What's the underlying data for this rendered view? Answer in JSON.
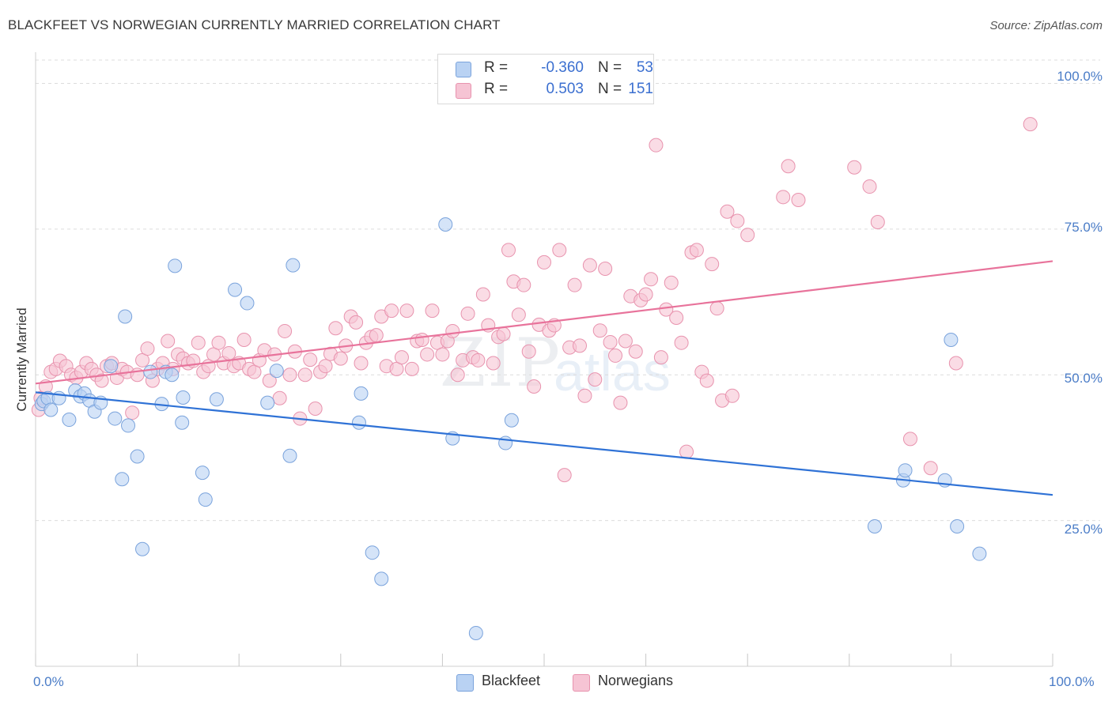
{
  "title": "BLACKFEET VS NORWEGIAN CURRENTLY MARRIED CORRELATION CHART",
  "source": "Source: ZipAtlas.com",
  "watermark": "ZIP",
  "watermark2": "atlas",
  "legend": {
    "r_label": "R =",
    "n_label": "N =",
    "rows": [
      {
        "name": "Blackfeet",
        "r": "-0.360",
        "n": "53"
      },
      {
        "name": "Norwegians",
        "r": "0.503",
        "n": "151"
      }
    ]
  },
  "colors": {
    "blackfeet_fill": "#b9d2f3",
    "blackfeet_stroke": "#7aa3dc",
    "blackfeet_line": "#2f72d6",
    "norwegians_fill": "#f6c4d4",
    "norwegians_stroke": "#e893ae",
    "norwegians_line": "#e8739b",
    "tick_text": "#4a7cc7"
  },
  "chart_data": {
    "type": "scatter",
    "title": "BLACKFEET VS NORWEGIAN CURRENTLY MARRIED CORRELATION CHART",
    "xlabel": "",
    "ylabel": "Currently Married",
    "xlim": [
      0,
      100
    ],
    "ylim": [
      0,
      104
    ],
    "x_tick_labels": [
      "0.0%",
      "100.0%"
    ],
    "y_ticks": [
      25,
      50,
      75,
      100
    ],
    "y_tick_labels": [
      "25.0%",
      "50.0%",
      "75.0%",
      "100.0%"
    ],
    "grid": true,
    "series": [
      {
        "name": "Blackfeet",
        "trend": {
          "x0": 0,
          "y0": 47.0,
          "x1": 100,
          "y1": 29.4
        },
        "points": [
          [
            0.6,
            45
          ],
          [
            0.8,
            45.5
          ],
          [
            1.2,
            46
          ],
          [
            1.5,
            44
          ],
          [
            2.3,
            46
          ],
          [
            3.3,
            42.3
          ],
          [
            3.9,
            47.3
          ],
          [
            4.4,
            46.3
          ],
          [
            4.8,
            46.8
          ],
          [
            5.3,
            45.6
          ],
          [
            5.8,
            43.7
          ],
          [
            6.4,
            45.2
          ],
          [
            7.4,
            51.5
          ],
          [
            7.8,
            42.5
          ],
          [
            8.5,
            32.1
          ],
          [
            8.8,
            60
          ],
          [
            9.1,
            41.3
          ],
          [
            10,
            36
          ],
          [
            10.5,
            20.1
          ],
          [
            11.3,
            50.5
          ],
          [
            12.4,
            45
          ],
          [
            12.8,
            50.5
          ],
          [
            13.4,
            50
          ],
          [
            13.7,
            68.7
          ],
          [
            14.4,
            41.8
          ],
          [
            14.5,
            46.1
          ],
          [
            16.4,
            33.2
          ],
          [
            16.7,
            28.6
          ],
          [
            17.8,
            45.8
          ],
          [
            19.6,
            64.6
          ],
          [
            20.8,
            62.3
          ],
          [
            22.8,
            45.2
          ],
          [
            23.7,
            50.7
          ],
          [
            25,
            36.1
          ],
          [
            25.3,
            68.8
          ],
          [
            31.8,
            41.8
          ],
          [
            32,
            46.8
          ],
          [
            33.1,
            19.5
          ],
          [
            34,
            15
          ],
          [
            40.3,
            75.8
          ],
          [
            41,
            39.1
          ],
          [
            43.3,
            5.7
          ],
          [
            46.2,
            38.3
          ],
          [
            46.8,
            42.2
          ],
          [
            82.5,
            24
          ],
          [
            85.3,
            31.9
          ],
          [
            85.5,
            33.6
          ],
          [
            89.4,
            31.9
          ],
          [
            90,
            56
          ],
          [
            90.6,
            24
          ],
          [
            92.8,
            19.3
          ]
        ]
      },
      {
        "name": "Norwegians",
        "trend": {
          "x0": 0,
          "y0": 48.5,
          "x1": 100,
          "y1": 69.5
        },
        "points": [
          [
            0.3,
            44
          ],
          [
            0.5,
            46
          ],
          [
            1,
            48
          ],
          [
            1.5,
            50.5
          ],
          [
            2,
            51
          ],
          [
            2.4,
            52.4
          ],
          [
            3,
            51.5
          ],
          [
            3.5,
            50
          ],
          [
            4,
            49.5
          ],
          [
            4.5,
            50.5
          ],
          [
            5,
            52
          ],
          [
            5.5,
            51
          ],
          [
            6,
            50
          ],
          [
            6.5,
            49
          ],
          [
            7,
            51.5
          ],
          [
            7.5,
            52
          ],
          [
            8,
            49.5
          ],
          [
            8.5,
            51
          ],
          [
            9,
            50.5
          ],
          [
            9.5,
            43.5
          ],
          [
            10,
            50
          ],
          [
            10.5,
            52.5
          ],
          [
            11,
            54.5
          ],
          [
            11.5,
            49
          ],
          [
            12,
            51
          ],
          [
            12.5,
            52
          ],
          [
            13,
            55.8
          ],
          [
            13.5,
            51
          ],
          [
            14,
            53.5
          ],
          [
            14.5,
            52.8
          ],
          [
            15,
            52
          ],
          [
            15.5,
            52.4
          ],
          [
            16,
            55.5
          ],
          [
            16.5,
            50.5
          ],
          [
            17,
            51.5
          ],
          [
            17.5,
            53.5
          ],
          [
            18,
            55.5
          ],
          [
            18.5,
            52
          ],
          [
            19,
            53.7
          ],
          [
            19.5,
            51.5
          ],
          [
            20,
            52
          ],
          [
            20.5,
            56
          ],
          [
            21,
            51
          ],
          [
            21.5,
            50.5
          ],
          [
            22,
            52.5
          ],
          [
            22.5,
            54.2
          ],
          [
            23,
            49
          ],
          [
            23.5,
            53.5
          ],
          [
            24,
            46
          ],
          [
            24.5,
            57.5
          ],
          [
            25,
            50
          ],
          [
            25.5,
            54
          ],
          [
            26,
            42.5
          ],
          [
            26.5,
            50
          ],
          [
            27,
            52.6
          ],
          [
            27.5,
            44.2
          ],
          [
            28,
            50.5
          ],
          [
            28.5,
            51.5
          ],
          [
            29,
            53.6
          ],
          [
            29.5,
            58
          ],
          [
            30,
            52.8
          ],
          [
            30.5,
            55
          ],
          [
            31,
            60
          ],
          [
            31.5,
            59
          ],
          [
            32,
            52
          ],
          [
            32.5,
            55.5
          ],
          [
            33,
            56.5
          ],
          [
            33.5,
            56.8
          ],
          [
            34,
            60
          ],
          [
            34.5,
            51.5
          ],
          [
            35,
            61
          ],
          [
            35.5,
            51
          ],
          [
            36,
            53
          ],
          [
            36.5,
            61
          ],
          [
            37,
            51
          ],
          [
            37.5,
            55.8
          ],
          [
            38,
            56
          ],
          [
            38.5,
            53.5
          ],
          [
            39,
            61
          ],
          [
            39.5,
            55.5
          ],
          [
            40,
            53.5
          ],
          [
            40.5,
            55.8
          ],
          [
            41,
            57.5
          ],
          [
            41.5,
            50
          ],
          [
            42,
            52.5
          ],
          [
            42.5,
            60.5
          ],
          [
            43,
            53
          ],
          [
            43.5,
            52.5
          ],
          [
            44,
            63.8
          ],
          [
            44.5,
            58.5
          ],
          [
            45,
            52
          ],
          [
            45.5,
            56.5
          ],
          [
            46,
            57
          ],
          [
            46.5,
            71.4
          ],
          [
            47,
            66
          ],
          [
            47.5,
            60.3
          ],
          [
            48,
            65.4
          ],
          [
            48.5,
            54
          ],
          [
            49,
            48
          ],
          [
            49.5,
            58.6
          ],
          [
            50,
            69.3
          ],
          [
            50.5,
            57.6
          ],
          [
            51,
            58.5
          ],
          [
            51.5,
            71.4
          ],
          [
            52,
            32.8
          ],
          [
            52.5,
            54.7
          ],
          [
            53,
            65.4
          ],
          [
            53.5,
            55
          ],
          [
            54,
            46.4
          ],
          [
            54.5,
            68.8
          ],
          [
            55,
            49.2
          ],
          [
            55.5,
            57.6
          ],
          [
            56,
            68.2
          ],
          [
            56.5,
            55.6
          ],
          [
            57,
            53.3
          ],
          [
            57.5,
            45.2
          ],
          [
            58,
            55.8
          ],
          [
            58.5,
            63.5
          ],
          [
            59,
            54
          ],
          [
            59.5,
            62.8
          ],
          [
            60,
            63.8
          ],
          [
            60.5,
            66.4
          ],
          [
            61,
            89.4
          ],
          [
            61.5,
            53
          ],
          [
            62,
            61.2
          ],
          [
            62.5,
            65.8
          ],
          [
            63,
            59.8
          ],
          [
            63.5,
            55.5
          ],
          [
            64,
            36.8
          ],
          [
            64.5,
            71
          ],
          [
            65,
            71.4
          ],
          [
            65.5,
            50.5
          ],
          [
            66,
            49
          ],
          [
            66.5,
            69
          ],
          [
            67,
            61.4
          ],
          [
            67.5,
            45.6
          ],
          [
            68,
            78
          ],
          [
            68.5,
            46.4
          ],
          [
            69,
            76.4
          ],
          [
            70,
            74
          ],
          [
            73.5,
            80.5
          ],
          [
            74,
            85.8
          ],
          [
            75,
            80
          ],
          [
            80.5,
            85.6
          ],
          [
            82,
            82.3
          ],
          [
            82.8,
            76.2
          ],
          [
            86,
            39
          ],
          [
            88,
            34
          ],
          [
            90.5,
            52
          ],
          [
            97.8,
            93
          ]
        ]
      }
    ]
  }
}
